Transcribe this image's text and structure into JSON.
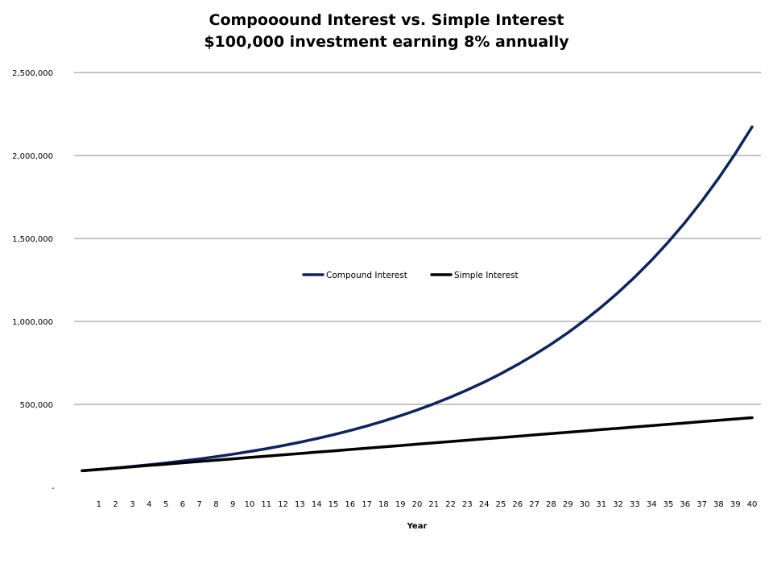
{
  "chart_data": {
    "type": "line",
    "title": "Compooound Interest vs. Simple Interest",
    "subtitle": "$100,000 investment earning 8% annually",
    "xlabel": "Year",
    "ylabel": "",
    "x": [
      1,
      2,
      3,
      4,
      5,
      6,
      7,
      8,
      9,
      10,
      11,
      12,
      13,
      14,
      15,
      16,
      17,
      18,
      19,
      20,
      21,
      22,
      23,
      24,
      25,
      26,
      27,
      28,
      29,
      30,
      31,
      32,
      33,
      34,
      35,
      36,
      37,
      38,
      39,
      40
    ],
    "ylim": [
      0,
      2500000
    ],
    "yticks": [
      0,
      500000,
      1000000,
      1500000,
      2000000,
      2500000
    ],
    "ytick_labels": [
      "-",
      "500,000",
      "1,000,000",
      "1,500,000",
      "2,000,000",
      "2,500,000"
    ],
    "grid": true,
    "legend_position": "center",
    "series": [
      {
        "name": "Compound Interest",
        "color": "#0d2461",
        "values": [
          108000,
          116640,
          125971,
          136049,
          146933,
          158687,
          171382,
          185093,
          199900,
          215892,
          233164,
          251817,
          271962,
          293719,
          317217,
          342594,
          370002,
          399602,
          431570,
          466096,
          503383,
          543654,
          587146,
          634118,
          684848,
          739635,
          798806,
          862711,
          931727,
          1006266,
          1086767,
          1173708,
          1267605,
          1369013,
          1478534,
          1596817,
          1724563,
          1862528,
          2011530,
          2172452
        ]
      },
      {
        "name": "Simple Interest",
        "color": "#000000",
        "values": [
          108000,
          116000,
          124000,
          132000,
          140000,
          148000,
          156000,
          164000,
          172000,
          180000,
          188000,
          196000,
          204000,
          212000,
          220000,
          228000,
          236000,
          244000,
          252000,
          260000,
          268000,
          276000,
          284000,
          292000,
          300000,
          308000,
          316000,
          324000,
          332000,
          340000,
          348000,
          356000,
          364000,
          372000,
          380000,
          388000,
          396000,
          404000,
          412000,
          420000
        ]
      }
    ]
  }
}
